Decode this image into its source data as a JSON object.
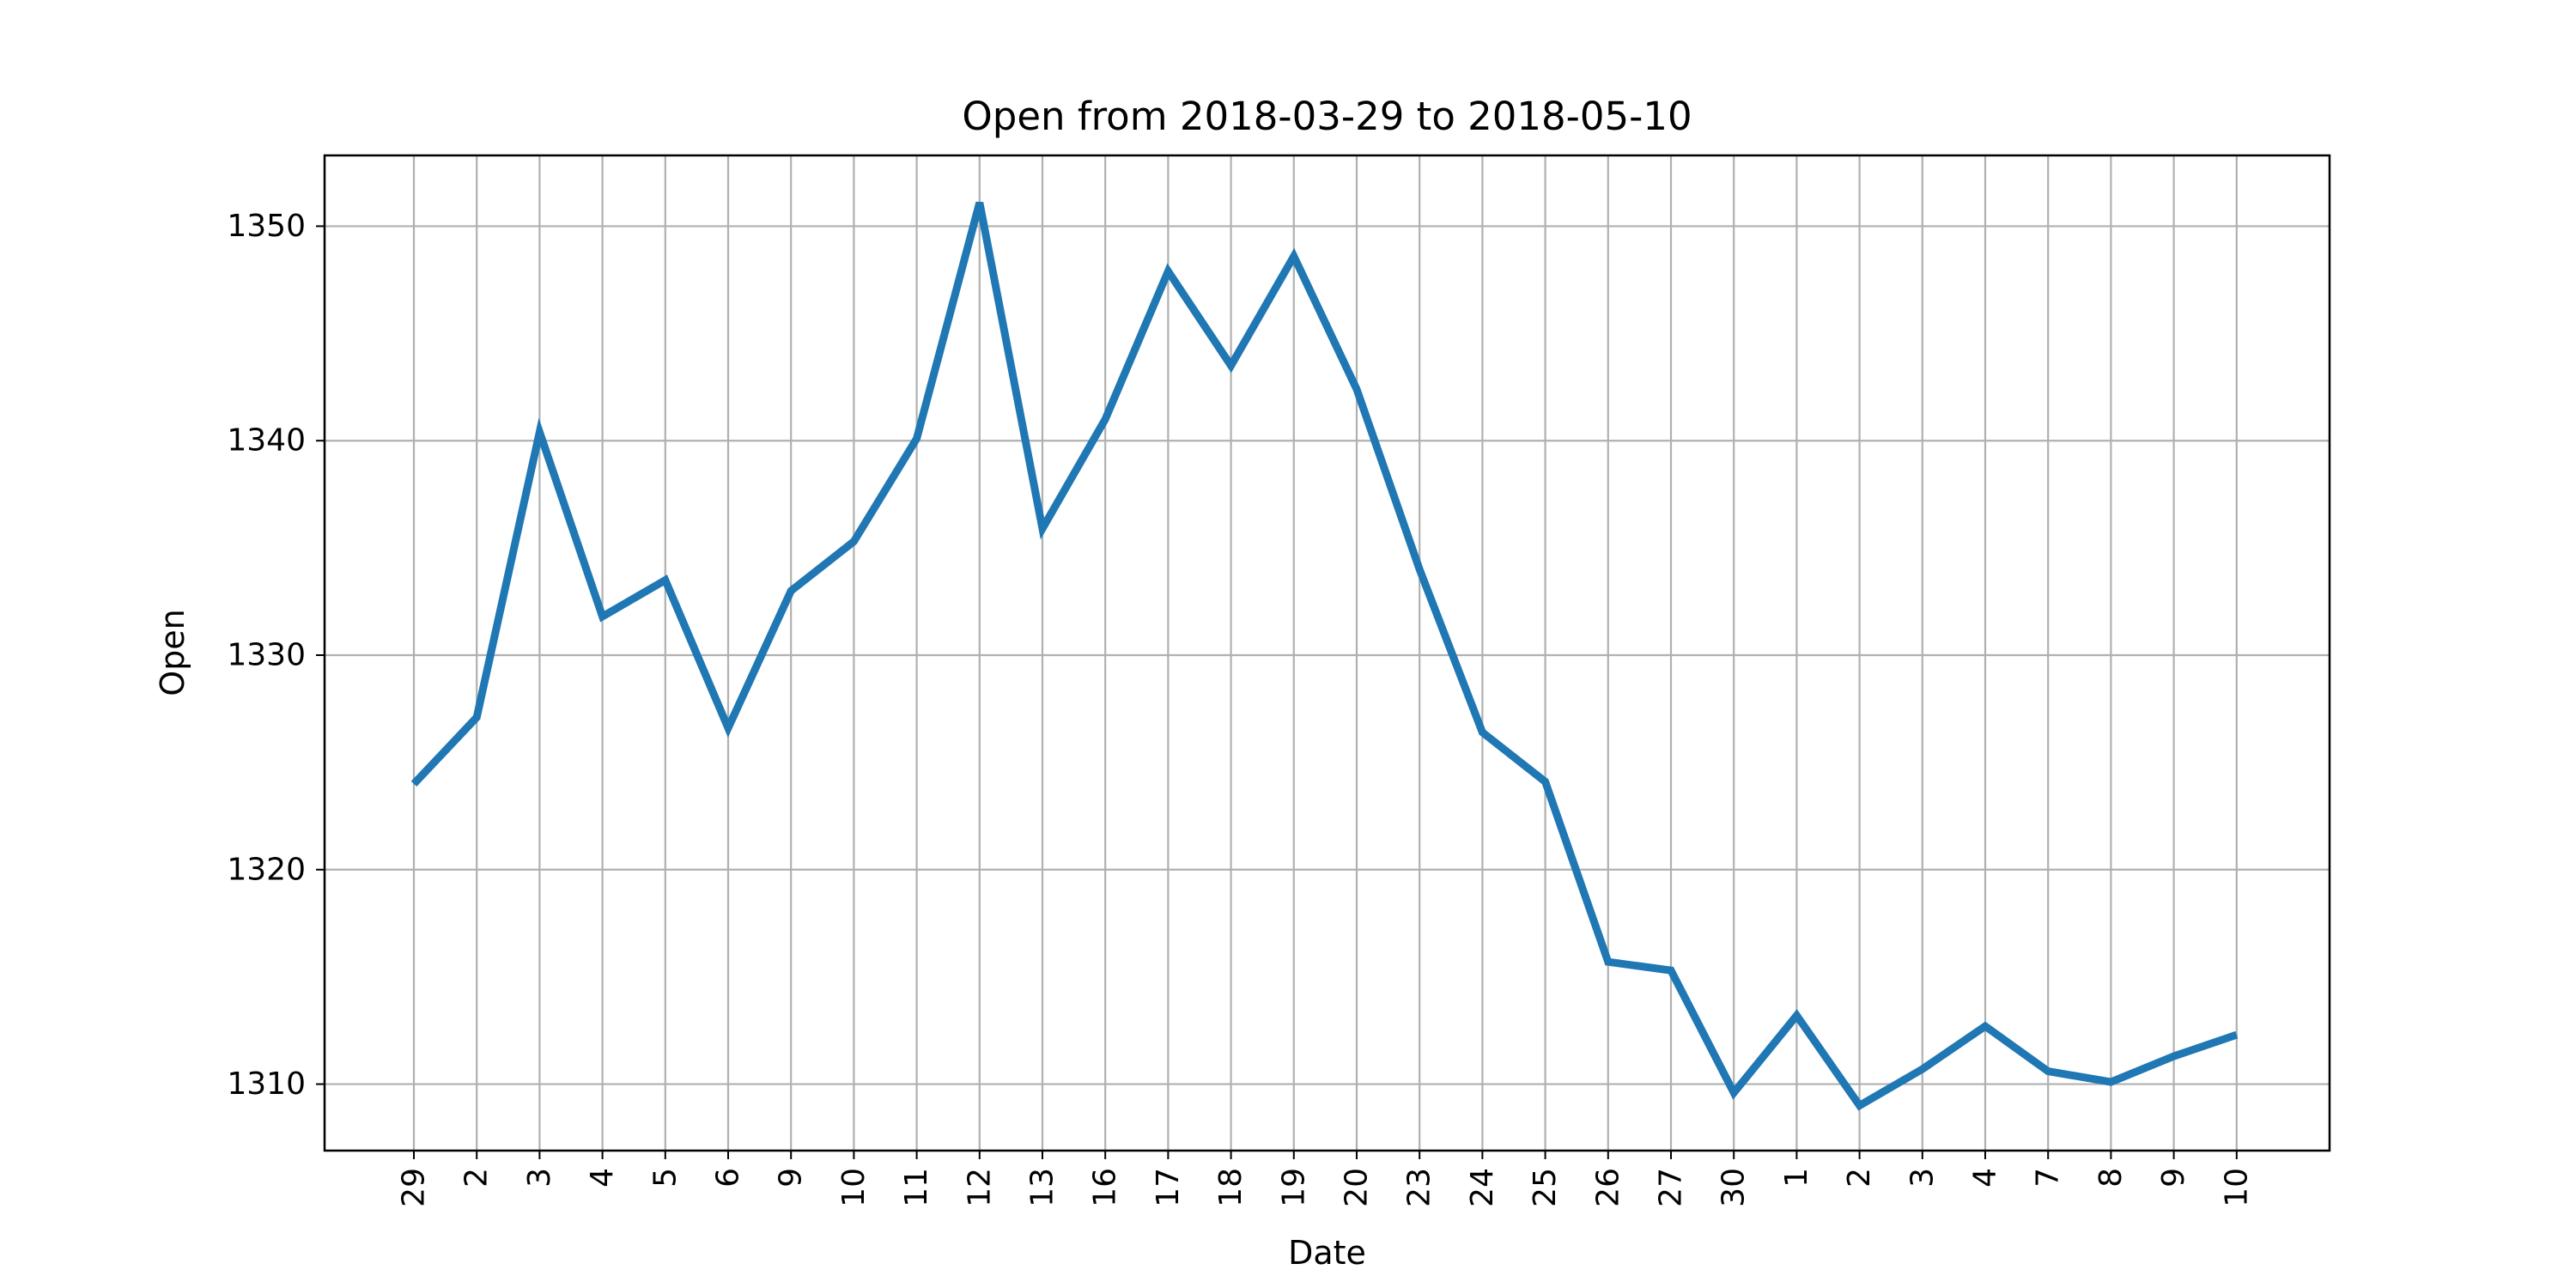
{
  "chart_data": {
    "type": "line",
    "title": "Open from 2018-03-29 to 2018-05-10",
    "xlabel": "Date",
    "ylabel": "Open",
    "x": [
      "2018-03-29",
      "2018-04-02",
      "2018-04-03",
      "2018-04-04",
      "2018-04-05",
      "2018-04-06",
      "2018-04-09",
      "2018-04-10",
      "2018-04-11",
      "2018-04-12",
      "2018-04-13",
      "2018-04-16",
      "2018-04-17",
      "2018-04-18",
      "2018-04-19",
      "2018-04-20",
      "2018-04-23",
      "2018-04-24",
      "2018-04-25",
      "2018-04-26",
      "2018-04-27",
      "2018-04-30",
      "2018-05-01",
      "2018-05-02",
      "2018-05-03",
      "2018-05-04",
      "2018-05-07",
      "2018-05-08",
      "2018-05-09",
      "2018-05-10"
    ],
    "xtick_labels": [
      "29",
      "2",
      "3",
      "4",
      "5",
      "6",
      "9",
      "10",
      "11",
      "12",
      "13",
      "16",
      "17",
      "18",
      "19",
      "20",
      "23",
      "24",
      "25",
      "26",
      "27",
      "30",
      "1",
      "2",
      "3",
      "4",
      "7",
      "8",
      "9",
      "10"
    ],
    "series": [
      {
        "values": [
          1324.0,
          1327.1,
          1340.4,
          1331.8,
          1333.5,
          1326.6,
          1333.0,
          1335.3,
          1340.1,
          1351.1,
          1335.9,
          1341.0,
          1347.9,
          1343.5,
          1348.6,
          1342.4,
          1334.0,
          1326.4,
          1324.1,
          1315.7,
          1315.3,
          1309.6,
          1313.2,
          1309.0,
          1310.7,
          1312.7,
          1310.6,
          1310.1,
          1311.3,
          1312.3
        ],
        "color": "#1f77b4"
      }
    ],
    "ylim": [
      1306.9,
      1353.3
    ],
    "yticks": [
      1310,
      1320,
      1330,
      1340,
      1350
    ],
    "grid": true,
    "legend": "none"
  }
}
